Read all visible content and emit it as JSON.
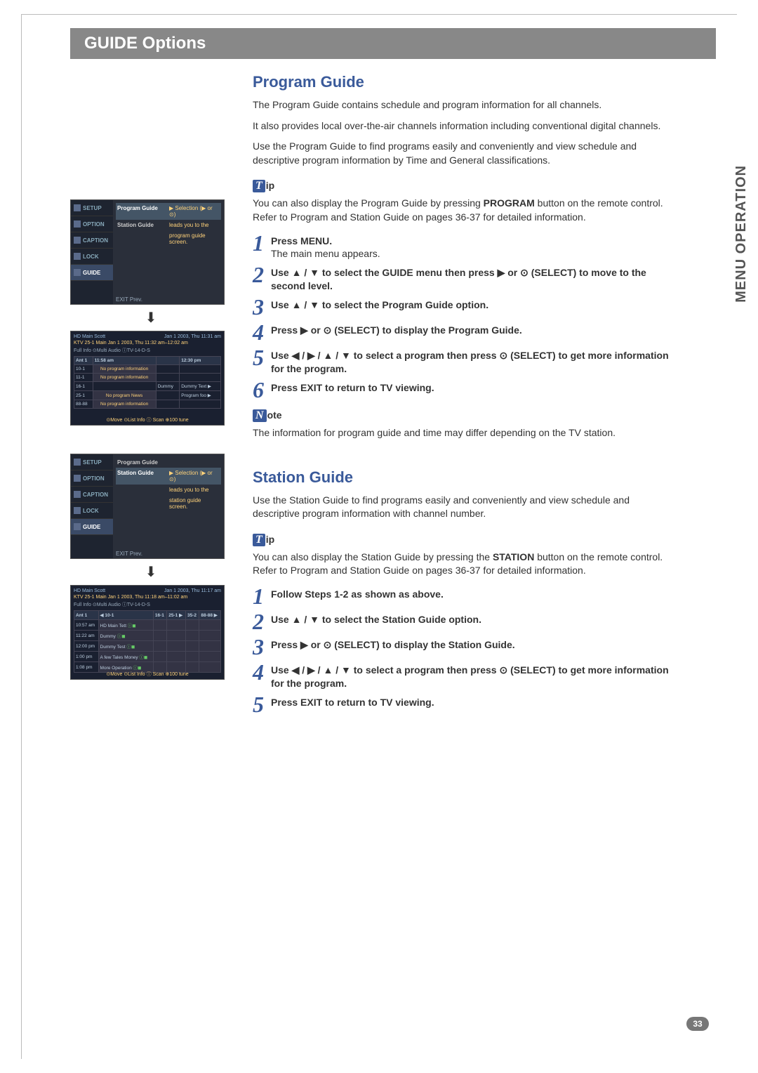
{
  "banner_title": "GUIDE Options",
  "side_tab": "MENU OPERATION",
  "page_number": "33",
  "program_guide": {
    "title": "Program Guide",
    "intro": [
      "The Program Guide contains schedule and program information for all channels.",
      "It also provides local over-the-air channels information including conventional digital channels.",
      "Use the Program Guide to find programs easily and conveniently and view schedule and descriptive program information by Time and General classifications."
    ],
    "tip_badge": "T",
    "tip_suffix": "ip",
    "tip_text_prefix": "You can also display the Program Guide by pressing ",
    "tip_bold": "PROGRAM",
    "tip_text_suffix": " button on the remote control. Refer to Program and Station Guide on pages 36-37 for detailed information.",
    "steps": [
      {
        "n": "1",
        "bold": "Press MENU.",
        "sub": "The main menu appears."
      },
      {
        "n": "2",
        "bold": "Use ▲ / ▼ to select the GUIDE menu then press ▶ or ⊙ (SELECT) to move to the second level."
      },
      {
        "n": "3",
        "bold": "Use ▲ / ▼ to select the Program Guide option."
      },
      {
        "n": "4",
        "bold": "Press ▶ or ⊙ (SELECT) to display the Program Guide."
      },
      {
        "n": "5",
        "bold": "Use ◀ / ▶ / ▲ / ▼ to select a program then press ⊙ (SELECT) to get more information for the program."
      },
      {
        "n": "6",
        "bold": "Press EXIT to return to TV viewing."
      }
    ],
    "note_badge": "N",
    "note_suffix": "ote",
    "note_text": "The information for program guide and time may differ depending on the TV station."
  },
  "station_guide": {
    "title": "Station Guide",
    "intro": "Use the Station Guide to find programs easily and conveniently and view schedule and descriptive program information with channel number.",
    "tip_badge": "T",
    "tip_suffix": "ip",
    "tip_text_prefix": "You can also display the Station Guide by pressing the ",
    "tip_bold": "STATION",
    "tip_text_suffix": " button on the remote control. Refer to Program and Station Guide on pages 36-37 for detailed information.",
    "steps": [
      {
        "n": "1",
        "bold": "Follow Steps 1-2 as shown as above."
      },
      {
        "n": "2",
        "bold": "Use ▲ / ▼ to select the Station Guide option."
      },
      {
        "n": "3",
        "bold": "Press ▶ or ⊙ (SELECT) to display the Station Guide."
      },
      {
        "n": "4",
        "bold": "Use ◀ / ▶ / ▲ / ▼ to select a program then press ⊙ (SELECT) to get more information for the program."
      },
      {
        "n": "5",
        "bold": "Press EXIT to return to TV viewing."
      }
    ]
  },
  "menu_mock": {
    "items": [
      "SETUP",
      "OPTION",
      "CAPTION",
      "LOCK",
      "GUIDE"
    ],
    "pg_rows": [
      {
        "label": "Program Guide",
        "desc": "▶ Selection (▶ or ⊙)",
        "hl": true
      },
      {
        "label": "Station Guide",
        "desc": "leads you to the"
      },
      {
        "label": "",
        "desc": "program guide screen."
      }
    ],
    "sg_rows": [
      {
        "label": "Program Guide",
        "desc": ""
      },
      {
        "label": "Station Guide",
        "desc": "▶ Selection (▶ or ⊙)",
        "hl": true
      },
      {
        "label": "",
        "desc": "leads you to the"
      },
      {
        "label": "",
        "desc": "station guide screen."
      }
    ],
    "footer": "EXIT Prev."
  },
  "pg_grid": {
    "hdr_left": "HD Main Scott",
    "hdr_right": "Jan 1 2003, Thu 11:31 am",
    "sub": "KTV 25-1 Main  Jan 1 2003, Thu  11:32 am–12:02 am",
    "info": "Full Info ⊙Multi Audio ⓘTV-14-D-S",
    "cols": [
      "Ant 1",
      "11:58 am",
      "",
      "12:30 pm"
    ],
    "rows": [
      [
        "10-1",
        "No program information",
        "",
        ""
      ],
      [
        "11-1",
        "No program information",
        "",
        ""
      ],
      [
        "16-1",
        "",
        "Dummy",
        "Dummy Text ▶"
      ],
      [
        "25-1",
        "No program News",
        "",
        "Program foo ▶"
      ],
      [
        "88-88",
        "No program information",
        "",
        ""
      ]
    ],
    "ftr": "⊙Move  ⊙List Info  ⓘ Scan  ⊕100 tune"
  },
  "sg_grid": {
    "hdr_left": "HD Main Scott",
    "hdr_right": "Jan 1 2003, Thu 11:17 am",
    "sub": "KTV 25-1 Main  Jan 1 2003, Thu  11:18 am–11:02 am",
    "info": "Full Info ⊙Multi Audio ⓘTV-14-D-S",
    "cols": [
      "Ant 1",
      "◀ 10-1",
      "16-1",
      "25-1 ▶",
      "35-2",
      "88-88 ▶"
    ],
    "rows": [
      [
        "10:57 am",
        "HD Main Tett",
        "",
        "",
        "",
        ""
      ],
      [
        "11:22 am",
        "Dummy",
        "",
        "",
        "",
        ""
      ],
      [
        "12:00 pm",
        "Dummy Test",
        "",
        "",
        "",
        ""
      ],
      [
        "1:00 pm",
        "A few Tales Money",
        "",
        "",
        "",
        ""
      ],
      [
        "1:08 pm",
        "More Operation",
        "",
        "",
        "",
        ""
      ]
    ],
    "ftr": "⊙Move  ⊙List Info  ⓘ Scan  ⊕100 tune"
  },
  "colors": {
    "banner_bg": "#888888",
    "accent": "#3a5a9a",
    "ui_bg": "#2a2f3a"
  }
}
